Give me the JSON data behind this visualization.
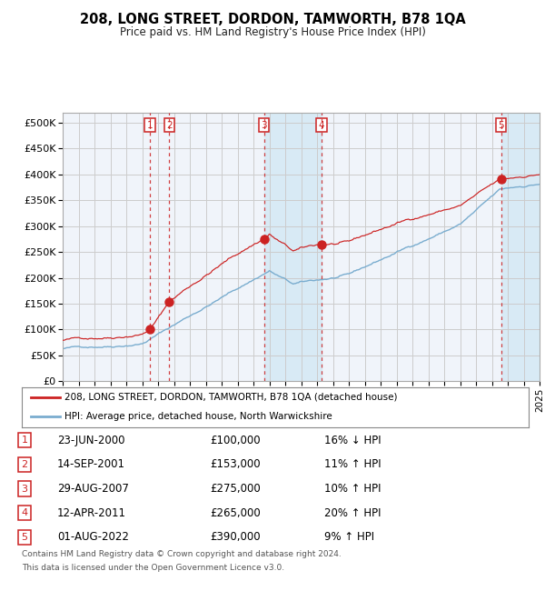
{
  "title": "208, LONG STREET, DORDON, TAMWORTH, B78 1QA",
  "subtitle": "Price paid vs. HM Land Registry's House Price Index (HPI)",
  "ylim": [
    0,
    520000
  ],
  "x_start_year": 1995,
  "x_end_year": 2025,
  "hpi_color": "#7aadcf",
  "price_color": "#cc2222",
  "marker_color": "#cc2222",
  "vline_color": "#cc2222",
  "shade_color": "#d8eaf5",
  "grid_color": "#cccccc",
  "background_color": "#f0f4fa",
  "sale_dates": [
    2000.48,
    2001.71,
    2007.66,
    2011.28,
    2022.58
  ],
  "sale_prices": [
    100000,
    153000,
    275000,
    265000,
    390000
  ],
  "sale_labels": [
    "1",
    "2",
    "3",
    "4",
    "5"
  ],
  "transactions": [
    {
      "num": "1",
      "date": "23-JUN-2000",
      "price": "£100,000",
      "hpi": "16% ↓ HPI"
    },
    {
      "num": "2",
      "date": "14-SEP-2001",
      "price": "£153,000",
      "hpi": "11% ↑ HPI"
    },
    {
      "num": "3",
      "date": "29-AUG-2007",
      "price": "£275,000",
      "hpi": "10% ↑ HPI"
    },
    {
      "num": "4",
      "date": "12-APR-2011",
      "price": "£265,000",
      "hpi": "20% ↑ HPI"
    },
    {
      "num": "5",
      "date": "01-AUG-2022",
      "price": "£390,000",
      "hpi": "9% ↑ HPI"
    }
  ],
  "legend_price_label": "208, LONG STREET, DORDON, TAMWORTH, B78 1QA (detached house)",
  "legend_hpi_label": "HPI: Average price, detached house, North Warwickshire",
  "footer_line1": "Contains HM Land Registry data © Crown copyright and database right 2024.",
  "footer_line2": "This data is licensed under the Open Government Licence v3.0."
}
